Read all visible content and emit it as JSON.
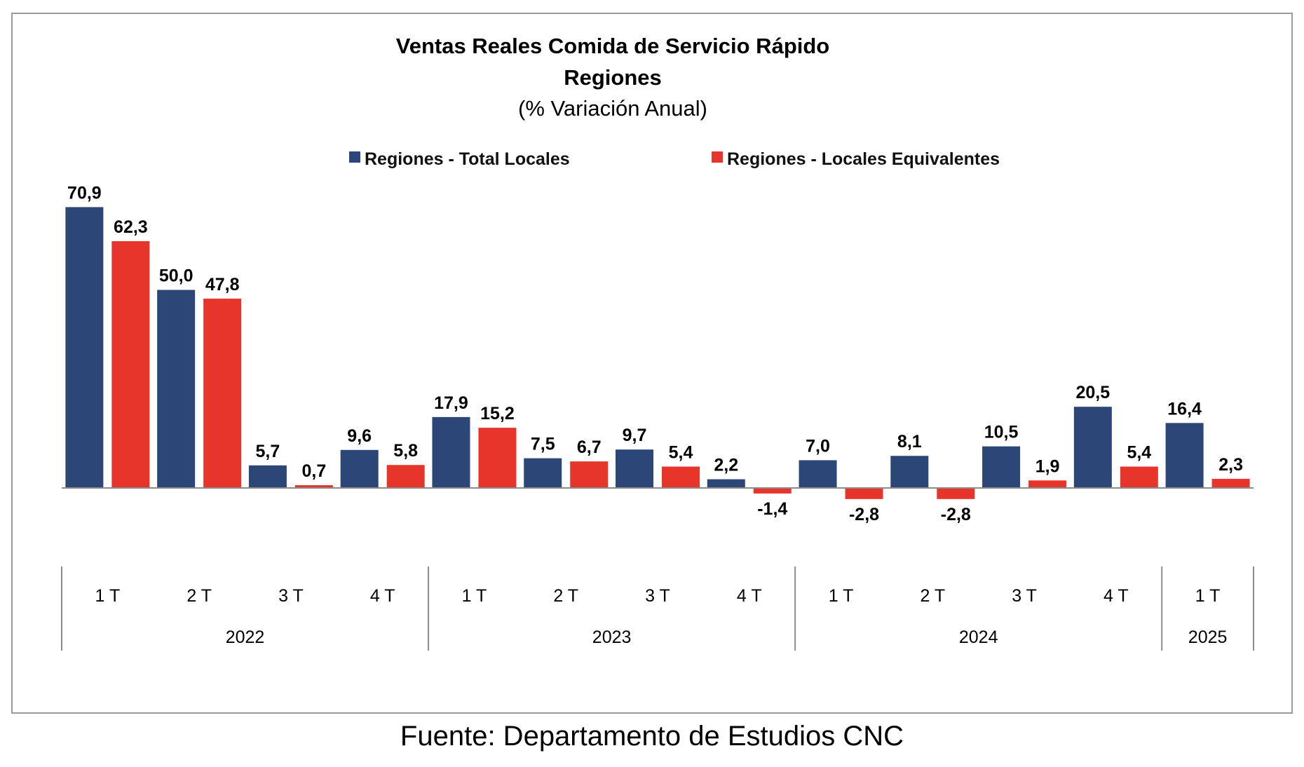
{
  "chart_data": {
    "type": "bar",
    "title": "Ventas Reales Comida de Servicio Rápido",
    "subtitle": "Regiones",
    "subtitle2": "(% Variación Anual)",
    "categories": [
      "1 T",
      "2 T",
      "3 T",
      "4 T",
      "1 T",
      "2 T",
      "3 T",
      "4 T",
      "1 T",
      "2 T",
      "3 T",
      "4 T",
      "1 T"
    ],
    "groups": [
      {
        "label": "2022",
        "count": 4
      },
      {
        "label": "2023",
        "count": 4
      },
      {
        "label": "2024",
        "count": 4
      },
      {
        "label": "2025",
        "count": 1
      }
    ],
    "series": [
      {
        "name": "Regiones - Total Locales",
        "color": "#2b4677",
        "values": [
          70.9,
          50.0,
          5.7,
          9.6,
          17.9,
          7.5,
          9.7,
          2.2,
          7.0,
          8.1,
          10.5,
          20.5,
          16.4
        ],
        "labels": [
          "70,9",
          "50,0",
          "5,7",
          "9,6",
          "17,9",
          "7,5",
          "9,7",
          "2,2",
          "7,0",
          "8,1",
          "10,5",
          "20,5",
          "16,4"
        ]
      },
      {
        "name": "Regiones - Locales Equivalentes",
        "color": "#e8352b",
        "values": [
          62.3,
          47.8,
          0.7,
          5.8,
          15.2,
          6.7,
          5.4,
          -1.4,
          -2.8,
          -2.8,
          1.9,
          5.4,
          2.3
        ],
        "labels": [
          "62,3",
          "47,8",
          "0,7",
          "5,8",
          "15,2",
          "6,7",
          "5,4",
          "-1,4",
          "-2,8",
          "-2,8",
          "1,9",
          "5,4",
          "2,3"
        ]
      }
    ],
    "legend_position": "top",
    "grid": false
  },
  "source": "Fuente: Departamento de Estudios CNC"
}
